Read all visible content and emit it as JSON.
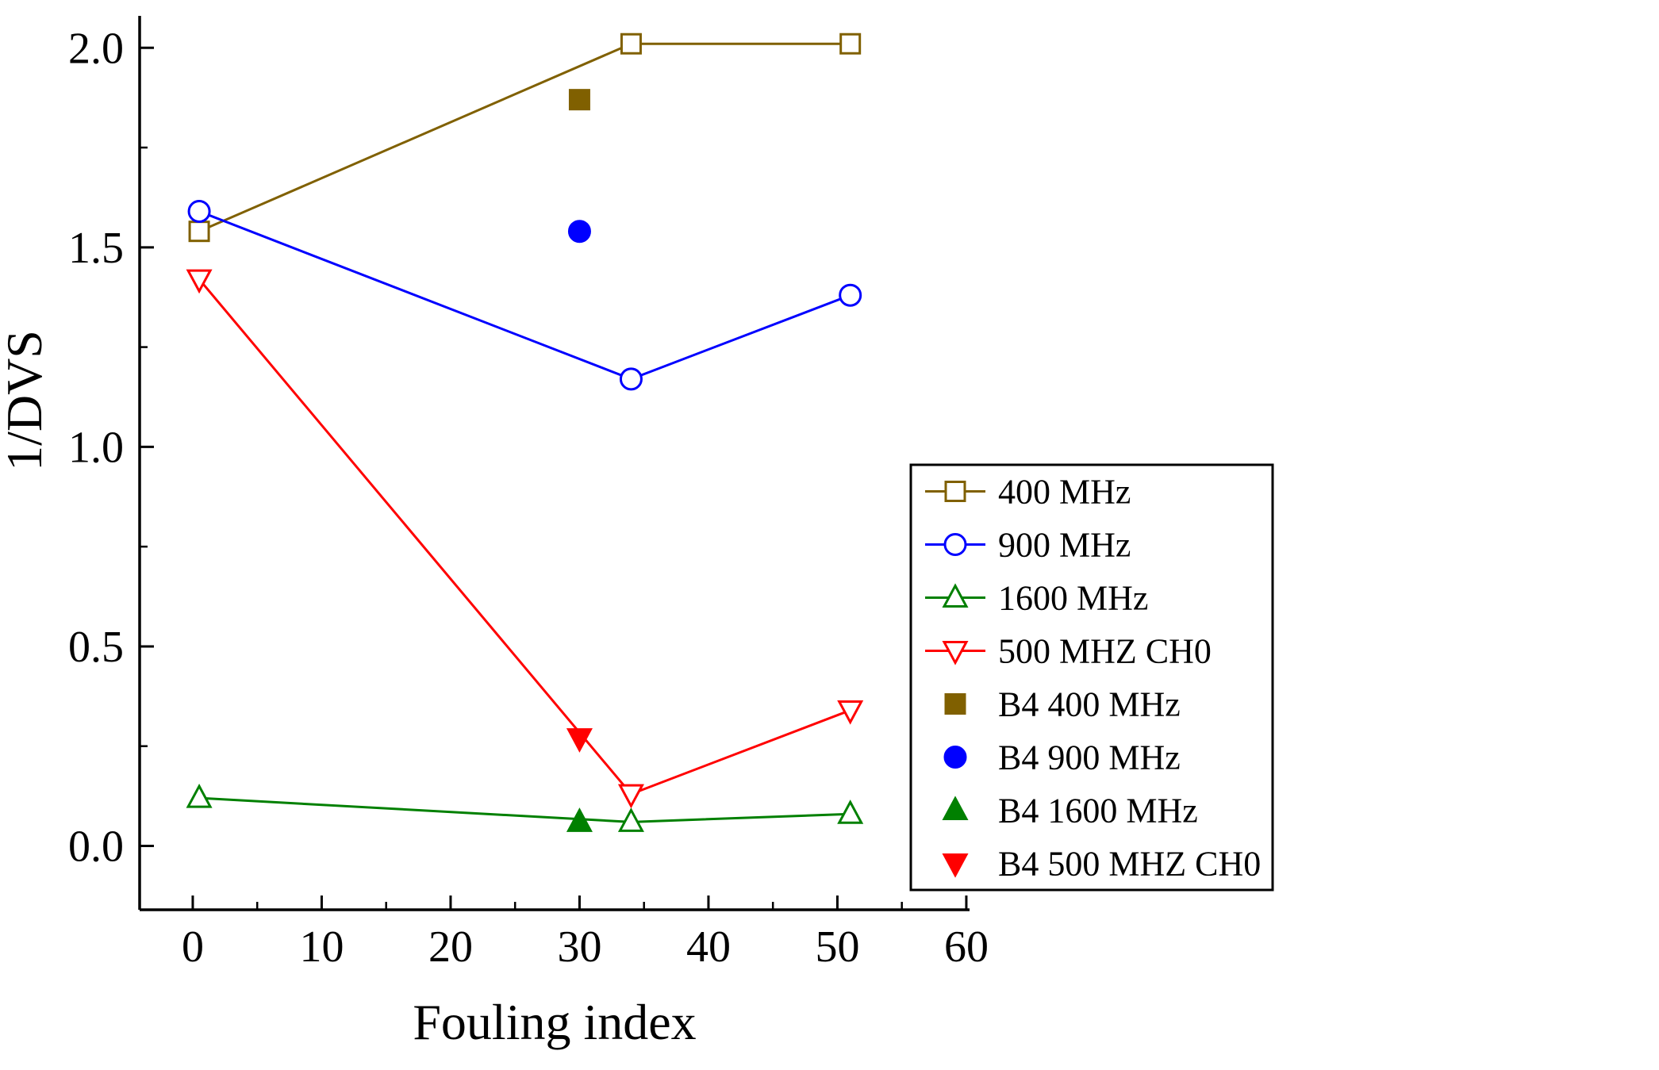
{
  "chart_data": {
    "type": "line",
    "title": "",
    "xlabel": "Fouling index",
    "ylabel": "1/DVS",
    "xlim": [
      -4.12,
      60.25
    ],
    "ylim": [
      -0.16,
      2.08
    ],
    "x_ticks": [
      0,
      10,
      20,
      30,
      40,
      50,
      60
    ],
    "y_ticks": [
      0,
      0.5,
      1,
      1.5,
      2
    ],
    "x_minor_ticks": [
      5,
      15,
      25,
      35,
      45,
      55
    ],
    "y_minor_ticks": [
      0.25,
      0.75,
      1.25,
      1.75
    ],
    "grid": false,
    "legend_position": "right-inside",
    "axis_color": "#000000",
    "series": [
      {
        "name": "400 MHz",
        "color": "#806000",
        "marker": "square",
        "filled": false,
        "line": true,
        "points": [
          [
            0.5,
            1.54
          ],
          [
            34,
            2.01
          ],
          [
            51,
            2.01
          ]
        ]
      },
      {
        "name": "900 MHz",
        "color": "#0000ff",
        "marker": "circle",
        "filled": false,
        "line": true,
        "points": [
          [
            0.5,
            1.59
          ],
          [
            34,
            1.17
          ],
          [
            51,
            1.38
          ]
        ]
      },
      {
        "name": "1600 MHz",
        "color": "#008000",
        "marker": "triangle-up",
        "filled": false,
        "line": true,
        "points": [
          [
            0.5,
            0.12
          ],
          [
            34,
            0.06
          ],
          [
            51,
            0.08
          ]
        ]
      },
      {
        "name": "500 MHZ CH0",
        "color": "#ff0000",
        "marker": "triangle-down",
        "filled": false,
        "line": true,
        "points": [
          [
            0.5,
            1.42
          ],
          [
            34,
            0.13
          ],
          [
            51,
            0.34
          ]
        ]
      },
      {
        "name": "B4 400 MHz",
        "color": "#806000",
        "marker": "square",
        "filled": true,
        "line": false,
        "points": [
          [
            30,
            1.87
          ]
        ]
      },
      {
        "name": "B4 900 MHz",
        "color": "#0000ff",
        "marker": "circle",
        "filled": true,
        "line": false,
        "points": [
          [
            30,
            1.54
          ]
        ]
      },
      {
        "name": "B4 1600 MHz",
        "color": "#008000",
        "marker": "triangle-up",
        "filled": true,
        "line": false,
        "points": [
          [
            30,
            0.06
          ]
        ]
      },
      {
        "name": "B4 500 MHZ CH0",
        "color": "#ff0000",
        "marker": "triangle-down",
        "filled": true,
        "line": false,
        "points": [
          [
            30,
            0.27
          ]
        ]
      }
    ]
  }
}
